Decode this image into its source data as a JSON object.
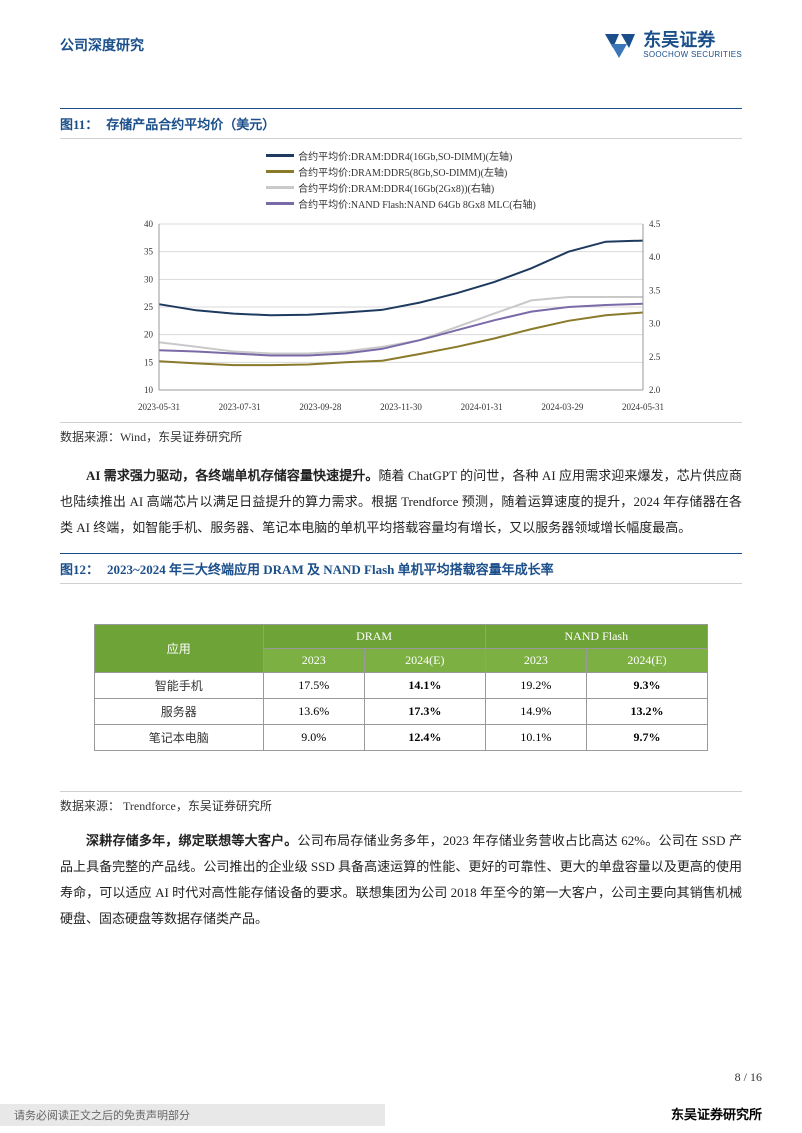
{
  "header": {
    "left_title": "公司深度研究",
    "logo_cn": "东吴证券",
    "logo_en": "SOOCHOW SECURITIES",
    "logo_color": "#1b4f8b"
  },
  "figure11": {
    "label": "图11：",
    "title": "存储产品合约平均价（美元）",
    "source": "数据来源：Wind，东吴证券研究所",
    "chart": {
      "type": "line",
      "background_color": "#ffffff",
      "grid_color": "#d9d9d9",
      "x_labels": [
        "2023-05-31",
        "2023-07-31",
        "2023-09-28",
        "2023-11-30",
        "2024-01-31",
        "2024-03-29",
        "2024-05-31"
      ],
      "y_left": {
        "min": 10,
        "max": 40,
        "step": 5
      },
      "y_right": {
        "min": 2.0,
        "max": 4.5,
        "step": 0.5
      },
      "series": [
        {
          "name": "合约平均价:DRAM:DDR4(16Gb,SO-DIMM)(左轴)",
          "color": "#1f3a5f",
          "axis": "left",
          "points": [
            25.5,
            24.4,
            23.8,
            23.5,
            23.6,
            24.0,
            24.5,
            25.8,
            27.5,
            29.5,
            32.0,
            35.0,
            36.8,
            37.0
          ]
        },
        {
          "name": "合约平均价:DRAM:DDR5(8Gb,SO-DIMM)(左轴)",
          "color": "#8a7a2a",
          "axis": "left",
          "points": [
            15.2,
            14.8,
            14.5,
            14.5,
            14.6,
            15.0,
            15.3,
            16.5,
            17.8,
            19.3,
            21.0,
            22.5,
            23.5,
            24.0
          ]
        },
        {
          "name": "合约平均价:DRAM:DDR4(16Gb(2Gx8))(右轴)",
          "color": "#c9c9c9",
          "axis": "right",
          "points": [
            2.72,
            2.65,
            2.58,
            2.55,
            2.55,
            2.58,
            2.65,
            2.75,
            2.95,
            3.15,
            3.35,
            3.4,
            3.4,
            3.4
          ]
        },
        {
          "name": "合约平均价:NAND Flash:NAND 64Gb 8Gx8 MLC(右轴)",
          "color": "#7a6aa8",
          "axis": "right",
          "points": [
            2.6,
            2.58,
            2.55,
            2.52,
            2.52,
            2.55,
            2.62,
            2.75,
            2.9,
            3.05,
            3.18,
            3.25,
            3.28,
            3.3
          ]
        }
      ],
      "label_fontsize": 9,
      "line_width": 2
    }
  },
  "para1": {
    "bold": "AI 需求强力驱动，各终端单机存储容量快速提升。",
    "rest": "随着 ChatGPT 的问世，各种 AI 应用需求迎来爆发，芯片供应商也陆续推出 AI 高端芯片以满足日益提升的算力需求。根据 Trendforce 预测，随着运算速度的提升，2024 年存储器在各类 AI 终端，如智能手机、服务器、笔记本电脑的单机平均搭载容量均有增长，又以服务器领域增长幅度最高。"
  },
  "figure12": {
    "label": "图12：",
    "title": "2023~2024 年三大终端应用 DRAM 及 NAND Flash 单机平均搭载容量年成长率",
    "source": "数据来源：  Trendforce，东吴证券研究所",
    "table": {
      "header_bg": "#6ea338",
      "subheader_bg": "#7db043",
      "header_text_color": "#ffffff",
      "app_label": "应用",
      "groups": [
        "DRAM",
        "NAND Flash"
      ],
      "sub_cols": [
        "2023",
        "2024(E)",
        "2023",
        "2024(E)"
      ],
      "rows": [
        {
          "label": "智能手机",
          "cells": [
            "17.5%",
            "14.1%",
            "19.2%",
            "9.3%"
          ]
        },
        {
          "label": "服务器",
          "cells": [
            "13.6%",
            "17.3%",
            "14.9%",
            "13.2%"
          ]
        },
        {
          "label": "笔记本电脑",
          "cells": [
            "9.0%",
            "12.4%",
            "10.1%",
            "9.7%"
          ]
        }
      ],
      "bold_cols": [
        1,
        3
      ]
    }
  },
  "para2": {
    "bold": "深耕存储多年，绑定联想等大客户。",
    "rest": "公司布局存储业务多年，2023 年存储业务营收占比高达 62%。公司在 SSD 产品上具备完整的产品线。公司推出的企业级 SSD 具备高速运算的性能、更好的可靠性、更大的单盘容量以及更高的使用寿命，可以适应 AI 时代对高性能存储设备的要求。联想集团为公司 2018 年至今的第一大客户，公司主要向其销售机械硬盘、固态硬盘等数据存储类产品。"
  },
  "footer": {
    "disclaimer": "请务必阅读正文之后的免责声明部分",
    "institute": "东吴证券研究所",
    "page_num": "8 / 16"
  }
}
